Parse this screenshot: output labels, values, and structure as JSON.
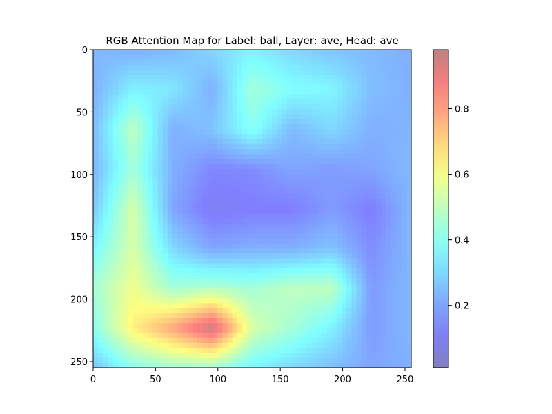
{
  "chart_data": {
    "type": "heatmap",
    "title": "RGB Attention Map for Label: ball, Layer: ave, Head: ave",
    "xlabel": "",
    "ylabel": "",
    "xlim": [
      0,
      255
    ],
    "ylim": [
      255,
      0
    ],
    "x_ticks": [
      0,
      50,
      100,
      150,
      200,
      250
    ],
    "y_ticks": [
      0,
      50,
      100,
      150,
      200,
      250
    ],
    "x_tick_labels": [
      "0",
      "50",
      "100",
      "150",
      "200",
      "250"
    ],
    "y_tick_labels": [
      "0",
      "50",
      "100",
      "150",
      "200",
      "250"
    ],
    "colormap": "jet",
    "overlay_alpha": 0.5,
    "colorbar": {
      "range": [
        0.01,
        0.98
      ],
      "ticks": [
        0.2,
        0.4,
        0.6,
        0.8
      ],
      "tick_labels": [
        "0.2",
        "0.4",
        "0.6",
        "0.8"
      ]
    },
    "grid_shape": [
      9,
      9
    ],
    "grid_extent": [
      0,
      255
    ],
    "values": [
      [
        0.24,
        0.22,
        0.24,
        0.3,
        0.35,
        0.3,
        0.26,
        0.24,
        0.22
      ],
      [
        0.22,
        0.35,
        0.33,
        0.22,
        0.45,
        0.38,
        0.36,
        0.25,
        0.22
      ],
      [
        0.24,
        0.5,
        0.22,
        0.26,
        0.4,
        0.24,
        0.3,
        0.22,
        0.23
      ],
      [
        0.23,
        0.45,
        0.22,
        0.14,
        0.15,
        0.2,
        0.18,
        0.2,
        0.24
      ],
      [
        0.26,
        0.55,
        0.2,
        0.1,
        0.12,
        0.12,
        0.18,
        0.12,
        0.24
      ],
      [
        0.36,
        0.55,
        0.3,
        0.2,
        0.22,
        0.22,
        0.26,
        0.15,
        0.24
      ],
      [
        0.45,
        0.6,
        0.45,
        0.48,
        0.45,
        0.5,
        0.5,
        0.18,
        0.24
      ],
      [
        0.4,
        0.65,
        0.8,
        0.98,
        0.55,
        0.45,
        0.35,
        0.18,
        0.24
      ],
      [
        0.26,
        0.4,
        0.45,
        0.45,
        0.35,
        0.3,
        0.25,
        0.2,
        0.22
      ]
    ]
  }
}
